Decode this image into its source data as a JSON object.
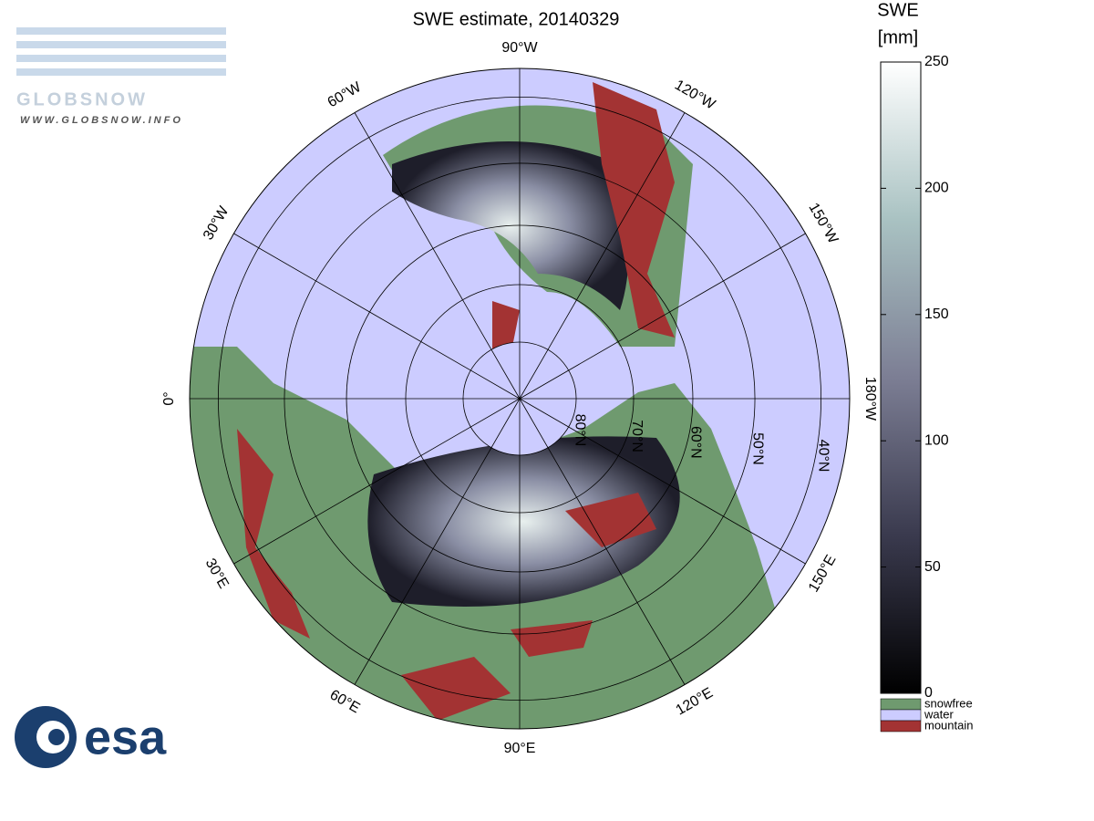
{
  "title": "SWE estimate, 20140329",
  "logo_top": {
    "name": "GLOBSNOW",
    "url": "WWW.GLOBSNOW.INFO"
  },
  "logo_bottom": "esa",
  "meridians": [
    {
      "value": -90,
      "label": "90°W"
    },
    {
      "value": -60,
      "label": "60°W"
    },
    {
      "value": -120,
      "label": "120°W"
    },
    {
      "value": -30,
      "label": "30°W"
    },
    {
      "value": -150,
      "label": "150°W"
    },
    {
      "value": 0,
      "label": "0°"
    },
    {
      "value": 180,
      "label": "180°W"
    },
    {
      "value": 30,
      "label": "30°E"
    },
    {
      "value": 150,
      "label": "150°E"
    },
    {
      "value": 60,
      "label": "60°E"
    },
    {
      "value": 120,
      "label": "120°E"
    },
    {
      "value": 90,
      "label": "90°E"
    }
  ],
  "parallels": [
    {
      "value": 80,
      "label": "80°N"
    },
    {
      "value": 70,
      "label": "70°N"
    },
    {
      "value": 60,
      "label": "60°N"
    },
    {
      "value": 50,
      "label": "50°N"
    },
    {
      "value": 40,
      "label": "40°N"
    }
  ],
  "colorbar": {
    "title": [
      "SWE",
      "[mm]"
    ],
    "range": [
      0,
      250
    ],
    "ticks": [
      0,
      50,
      100,
      150,
      200,
      250
    ]
  },
  "legend": [
    {
      "label": "snowfree",
      "color": "#6f9a6f"
    },
    {
      "label": "water",
      "color": "#ccccff"
    },
    {
      "label": "mountain",
      "color": "#a33333"
    }
  ]
}
